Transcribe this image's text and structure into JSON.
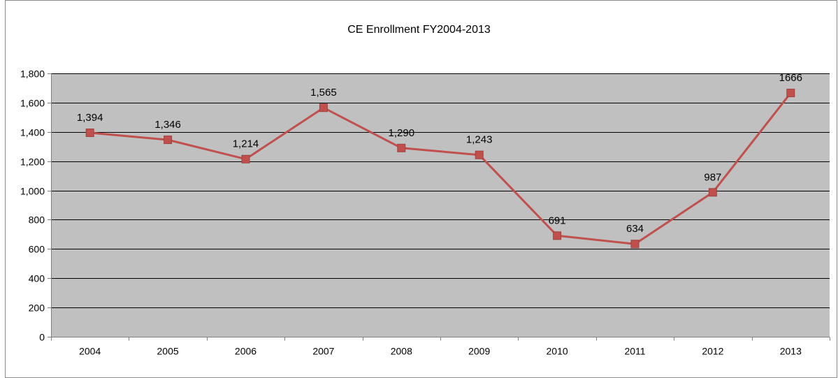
{
  "chart_data": {
    "type": "line",
    "title": "CE Enrollment FY2004-2013",
    "xlabel": "",
    "ylabel": "",
    "categories": [
      "2004",
      "2005",
      "2006",
      "2007",
      "2008",
      "2009",
      "2010",
      "2011",
      "2012",
      "2013"
    ],
    "series": [
      {
        "values": [
          1394,
          1346,
          1214,
          1565,
          1290,
          1243,
          691,
          634,
          987,
          1666
        ],
        "data_labels": [
          "1,394",
          "1,346",
          "1,214",
          "1,565",
          "1,290",
          "1,243",
          "691",
          "634",
          "987",
          "1666"
        ],
        "color": "#C0504D",
        "marker": "square"
      }
    ],
    "ylim": [
      0,
      1800
    ],
    "y_ticks": [
      0,
      200,
      400,
      600,
      800,
      1000,
      1200,
      1400,
      1600,
      1800
    ],
    "y_tick_labels": [
      "0",
      "200",
      "400",
      "600",
      "800",
      "1,000",
      "1,200",
      "1,400",
      "1,600",
      "1,800"
    ],
    "grid": true,
    "legend": "none",
    "plot_background": "#C0C0C0"
  }
}
